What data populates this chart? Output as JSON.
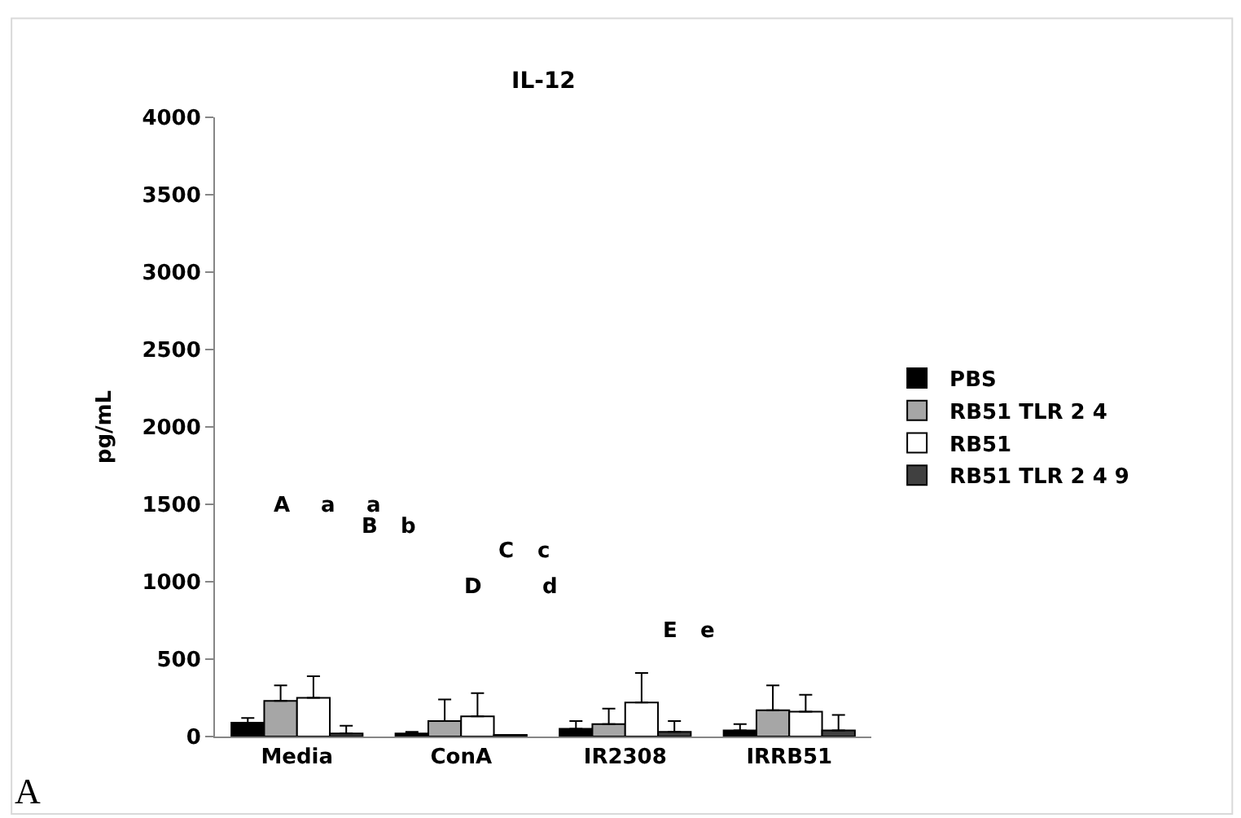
{
  "chart_data": {
    "type": "bar",
    "title": "IL-12",
    "ylabel": "pg/mL",
    "categories": [
      "Media",
      "ConA",
      "IR2308",
      "IRRB51"
    ],
    "series": [
      {
        "name": "PBS",
        "color": "#000000",
        "values": [
          90,
          20,
          50,
          40
        ],
        "errors": [
          [
            90,
            120
          ],
          [
            20,
            30
          ],
          [
            50,
            100
          ],
          [
            40,
            80
          ]
        ]
      },
      {
        "name": "RB51 TLR 2 4",
        "color": "#a6a6a6",
        "values": [
          230,
          100,
          80,
          170
        ],
        "errors": [
          [
            230,
            330
          ],
          [
            100,
            240
          ],
          [
            80,
            180
          ],
          [
            170,
            330
          ]
        ]
      },
      {
        "name": "RB51",
        "color": "#ffffff",
        "values": [
          250,
          130,
          220,
          160
        ],
        "errors": [
          [
            250,
            390
          ],
          [
            130,
            280
          ],
          [
            220,
            410
          ],
          [
            160,
            270
          ]
        ]
      },
      {
        "name": "RB51 TLR 2 4 9",
        "color": "#404040",
        "values": [
          20,
          10,
          30,
          40
        ],
        "errors": [
          [
            20,
            70
          ],
          null,
          [
            30,
            100
          ],
          [
            40,
            140
          ]
        ]
      }
    ],
    "ylim": [
      0,
      4000
    ],
    "yticks": [
      0,
      500,
      1000,
      1500,
      2000,
      2500,
      3000,
      3500,
      4000
    ],
    "legend": "right",
    "annotations": [
      "A",
      "a",
      "a",
      "B",
      "b",
      "C",
      "c",
      "D",
      "d",
      "E",
      "e",
      "A"
    ]
  }
}
